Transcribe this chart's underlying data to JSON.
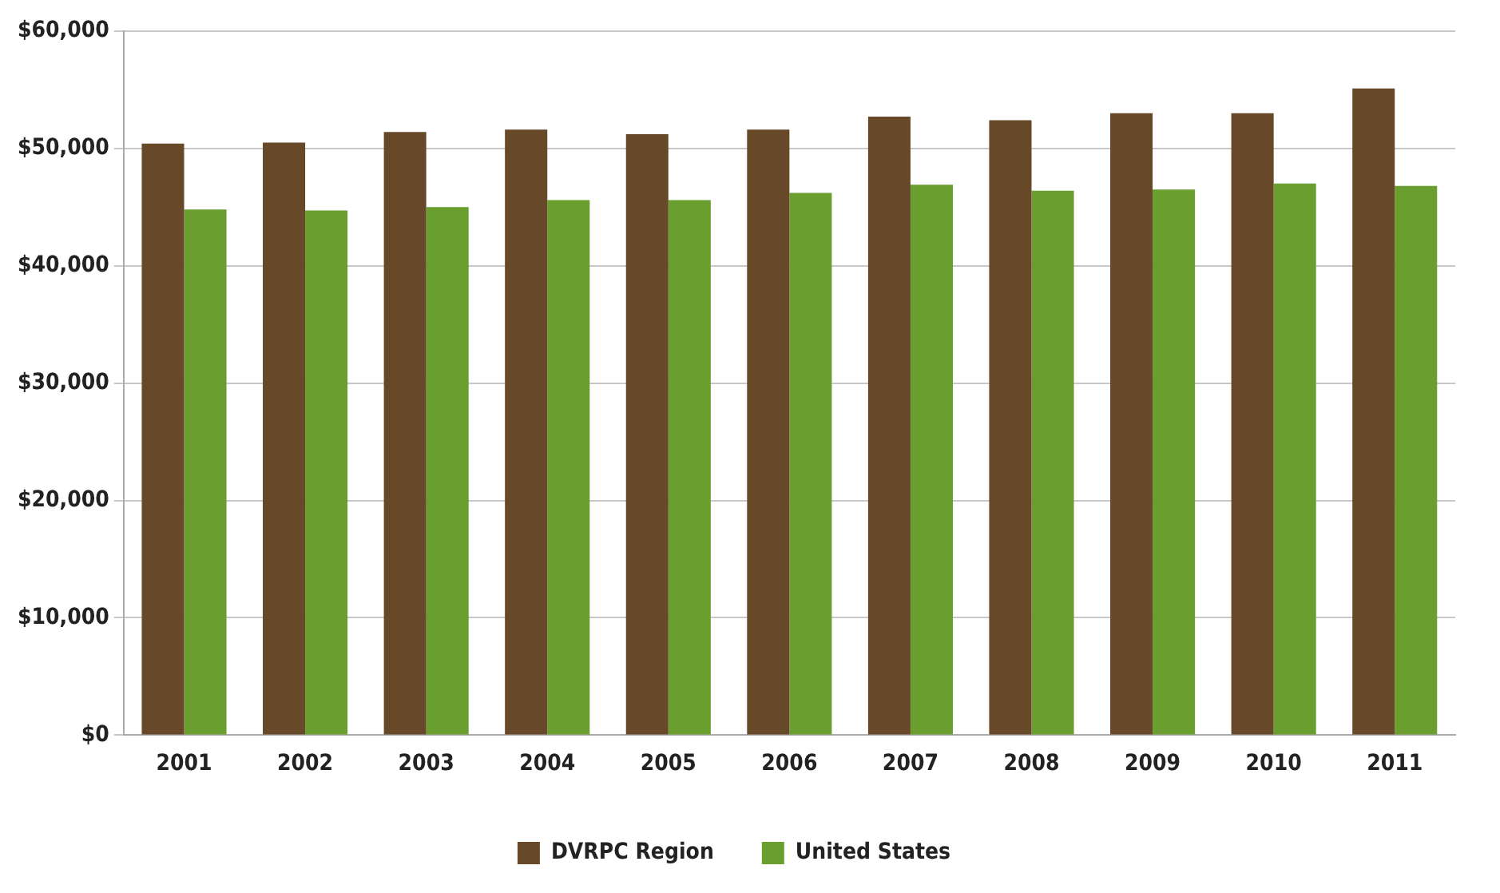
{
  "chart_data": {
    "type": "bar",
    "categories": [
      "2001",
      "2002",
      "2003",
      "2004",
      "2005",
      "2006",
      "2007",
      "2008",
      "2009",
      "2010",
      "2011"
    ],
    "series": [
      {
        "name": "DVRPC Region",
        "color": "#67492a",
        "values": [
          50400,
          50500,
          51400,
          51600,
          51200,
          51600,
          52700,
          52400,
          53000,
          53000,
          55100
        ]
      },
      {
        "name": "United States",
        "color": "#6a9e2f",
        "values": [
          44800,
          44700,
          45000,
          45600,
          45600,
          46200,
          46900,
          46400,
          46500,
          47000,
          46800
        ]
      }
    ],
    "ylim": [
      0,
      60000
    ],
    "yticks": [
      {
        "value": 0,
        "label": "$0"
      },
      {
        "value": 10000,
        "label": "$10,000"
      },
      {
        "value": 20000,
        "label": "$20,000"
      },
      {
        "value": 30000,
        "label": "$30,000"
      },
      {
        "value": 40000,
        "label": "$40,000"
      },
      {
        "value": 50000,
        "label": "$50,000"
      },
      {
        "value": 60000,
        "label": "$60,000"
      }
    ],
    "grid": "y",
    "legend": "bottom"
  }
}
